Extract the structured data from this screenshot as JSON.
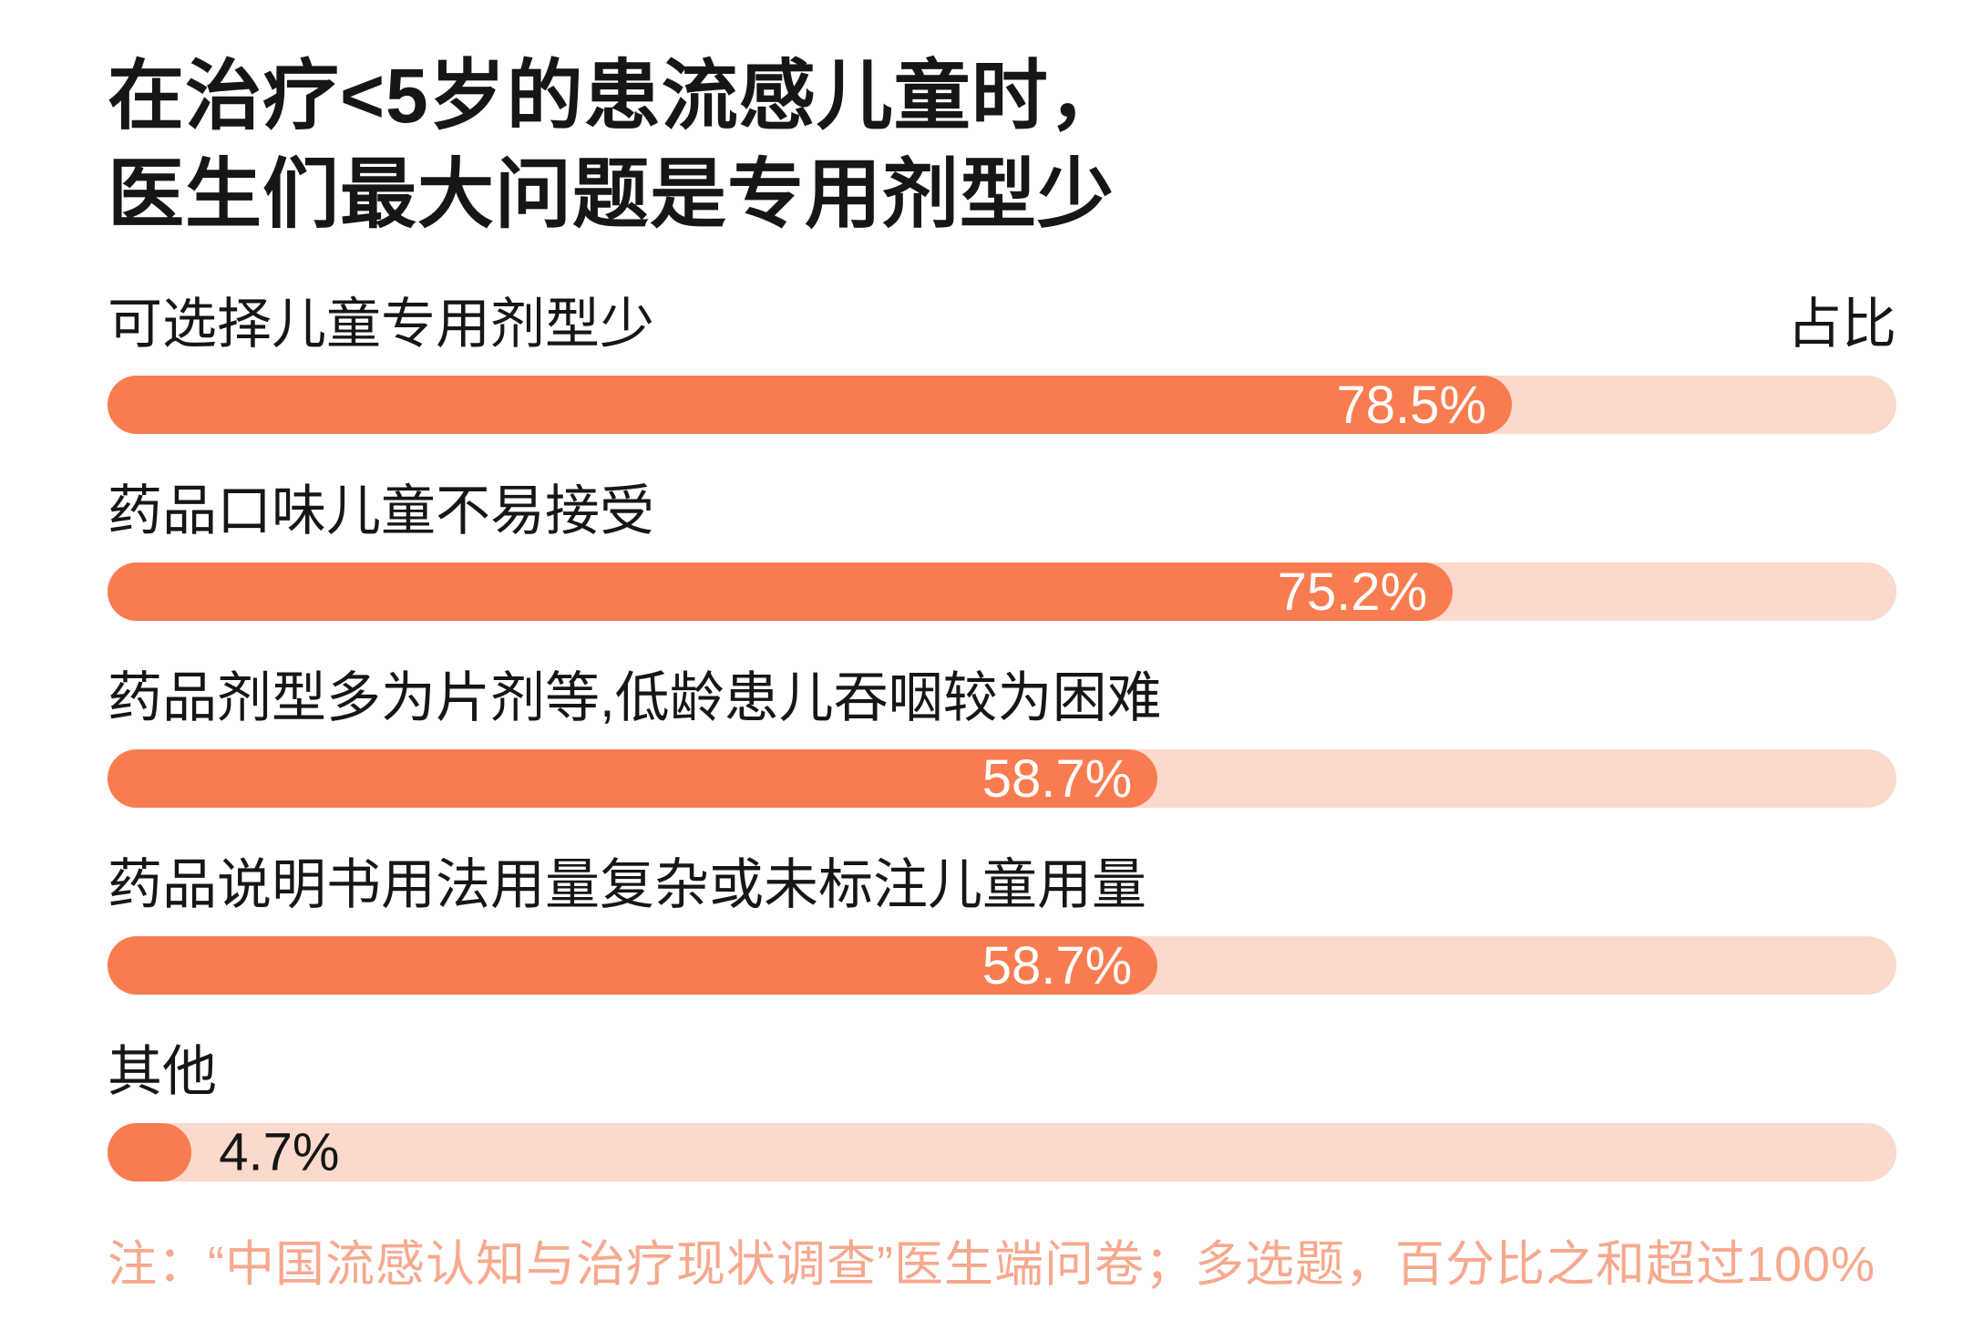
{
  "page": {
    "title_line1": "在治疗<5岁的患流感儿童时，",
    "title_line2": "医生们最大问题是专用剂型少",
    "axis_header": "占比",
    "note": "注：“中国流感认知与治疗现状调查”医生端问卷；多选题，百分比之和超过100%"
  },
  "colors": {
    "bar_fill": "#F97C50",
    "bar_track": "#FBD9CC",
    "text": "#161616",
    "note_text": "#F6A98E",
    "value_text_on_bar": "#FFFFFF"
  },
  "chart_data": {
    "type": "bar",
    "orientation": "horizontal",
    "title": "在治疗<5岁的患流感儿童时，医生们最大问题是专用剂型少",
    "xlabel": "占比",
    "ylabel": "",
    "categories": [
      "可选择儿童专用剂型少",
      "药品口味儿童不易接受",
      "药品剂型多为片剂等,低龄患儿吞咽较为困难",
      "药品说明书用法用量复杂或未标注儿童用量",
      "其他"
    ],
    "values": [
      78.5,
      75.2,
      58.7,
      58.7,
      4.7
    ],
    "value_labels": [
      "78.5%",
      "75.2%",
      "58.7%",
      "58.7%",
      "4.7%"
    ],
    "xlim": [
      0,
      100
    ],
    "grid": false,
    "legend": "none",
    "note": "注：“中国流感认知与治疗现状调查”医生端问卷；多选题，百分比之和超过100%"
  }
}
